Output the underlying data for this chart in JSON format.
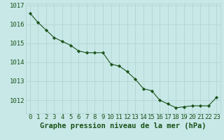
{
  "x": [
    0,
    1,
    2,
    3,
    4,
    5,
    6,
    7,
    8,
    9,
    10,
    11,
    12,
    13,
    14,
    15,
    16,
    17,
    18,
    19,
    20,
    21,
    22,
    23
  ],
  "y": [
    1016.6,
    1016.1,
    1015.7,
    1015.3,
    1015.1,
    1014.9,
    1014.6,
    1014.5,
    1014.5,
    1014.5,
    1013.9,
    1013.8,
    1013.5,
    1013.1,
    1012.6,
    1012.5,
    1012.0,
    1011.8,
    1011.6,
    1011.65,
    1011.7,
    1011.7,
    1011.7,
    1012.15
  ],
  "title": "Graphe pression niveau de la mer (hPa)",
  "xlim": [
    -0.5,
    23.5
  ],
  "ylim": [
    1011.3,
    1017.1
  ],
  "yticks": [
    1012,
    1013,
    1014,
    1015,
    1016,
    1017
  ],
  "xtick_labels": [
    "0",
    "1",
    "2",
    "3",
    "4",
    "5",
    "6",
    "7",
    "8",
    "9",
    "10",
    "11",
    "12",
    "13",
    "14",
    "15",
    "16",
    "17",
    "18",
    "19",
    "20",
    "21",
    "22",
    "23"
  ],
  "line_color": "#1a5218",
  "marker_color": "#1a5218",
  "bg_color": "#c8e8e8",
  "grid_color": "#b0d0d0",
  "title_color": "#1a5218",
  "title_fontsize": 7.5,
  "tick_fontsize": 6.5
}
